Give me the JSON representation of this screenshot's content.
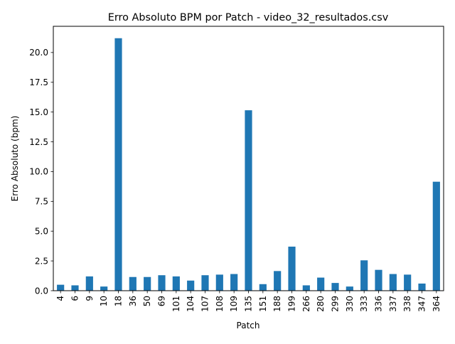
{
  "chart_data": {
    "type": "bar",
    "title": "Erro Absoluto BPM por Patch - video_32_resultados.csv",
    "xlabel": "Patch",
    "ylabel": "Erro Absoluto (bpm)",
    "categories": [
      "4",
      "6",
      "9",
      "10",
      "18",
      "36",
      "50",
      "69",
      "101",
      "104",
      "107",
      "108",
      "109",
      "135",
      "151",
      "188",
      "199",
      "266",
      "280",
      "299",
      "330",
      "333",
      "336",
      "337",
      "338",
      "347",
      "364"
    ],
    "values": [
      0.5,
      0.45,
      1.2,
      0.35,
      21.2,
      1.15,
      1.15,
      1.3,
      1.2,
      0.85,
      1.3,
      1.35,
      1.4,
      15.15,
      0.55,
      1.65,
      3.7,
      0.45,
      1.1,
      0.65,
      0.35,
      2.55,
      1.75,
      1.4,
      1.35,
      0.6,
      9.15
    ],
    "ylim": [
      0,
      22.2
    ],
    "yticks": [
      0.0,
      2.5,
      5.0,
      7.5,
      10.0,
      12.5,
      15.0,
      17.5,
      20.0
    ],
    "ytick_labels": [
      "0.0",
      "2.5",
      "5.0",
      "7.5",
      "10.0",
      "12.5",
      "15.0",
      "17.5",
      "20.0"
    ],
    "bar_color": "#1f77b4",
    "grid": false,
    "legend": "none"
  }
}
